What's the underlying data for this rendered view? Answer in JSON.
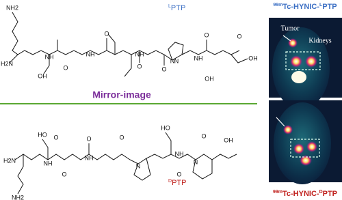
{
  "top_label": {
    "prefix": "L",
    "name": "PTP"
  },
  "bottom_label": {
    "prefix": "D",
    "name": "PTP"
  },
  "mirror_text": "Mirror-image",
  "top_image": {
    "isotope": "99m",
    "title": "Tc-HYNIC-",
    "prefix": "L",
    "name": "PTP",
    "tumor": "Tumor",
    "kidneys": "Kidneys"
  },
  "bottom_image": {
    "isotope": "99m",
    "title": "Tc-HYNIC-",
    "prefix": "D",
    "name": "PTP"
  },
  "top_atoms": [
    "NH2",
    "H2N",
    "NH",
    "O",
    "OH",
    "NH",
    "O",
    "NH",
    "O",
    "N",
    "O",
    "NH",
    "O",
    "OH",
    "N",
    "O",
    "OH"
  ],
  "bottom_atoms": [
    "HO",
    "H2N",
    "NH",
    "O",
    "O",
    "NH",
    "O",
    "N",
    "O",
    "HO",
    "NH",
    "O",
    "N",
    "O",
    "OH",
    "NH2"
  ]
}
